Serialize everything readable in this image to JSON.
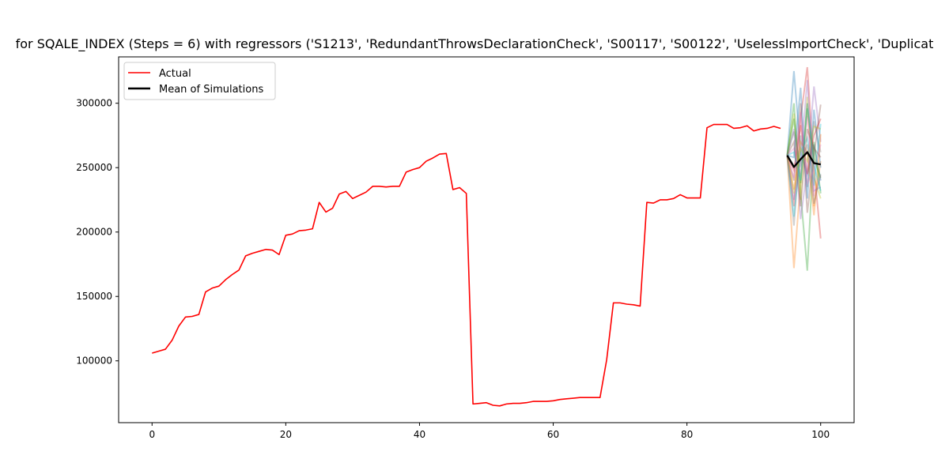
{
  "chart_data": {
    "type": "line",
    "title": "for SQALE_INDEX (Steps = 6) with regressors ('S1213', 'RedundantThrowsDeclarationCheck', 'S00117', 'S00122', 'UselessImportCheck', 'Duplicat",
    "xlabel": "",
    "ylabel": "",
    "xlim": [
      -5,
      105
    ],
    "ylim": [
      52000,
      336000
    ],
    "xticks": [
      0,
      20,
      40,
      60,
      80,
      100
    ],
    "yticks": [
      100000,
      150000,
      200000,
      250000,
      300000
    ],
    "grid": false,
    "legend_position": "upper-left",
    "series": [
      {
        "name": "Actual",
        "color": "#ff0000",
        "x": [
          0,
          1,
          2,
          3,
          4,
          5,
          6,
          7,
          8,
          9,
          10,
          11,
          12,
          13,
          14,
          15,
          16,
          17,
          18,
          19,
          20,
          21,
          22,
          23,
          24,
          25,
          26,
          27,
          28,
          29,
          30,
          31,
          32,
          33,
          34,
          35,
          36,
          37,
          38,
          39,
          40,
          41,
          42,
          43,
          44,
          45,
          46,
          47,
          48,
          49,
          50,
          51,
          52,
          53,
          54,
          55,
          56,
          57,
          58,
          59,
          60,
          61,
          62,
          63,
          64,
          65,
          66,
          67,
          68,
          69,
          70,
          71,
          72,
          73,
          74,
          75,
          76,
          77,
          78,
          79,
          80,
          81,
          82,
          83,
          84,
          85,
          86,
          87,
          88,
          89,
          90,
          91,
          92,
          93,
          94
        ],
        "y": [
          106000,
          107500,
          109000,
          116000,
          127000,
          134000,
          134500,
          136000,
          153500,
          156500,
          158000,
          163000,
          167000,
          170500,
          181500,
          183500,
          185000,
          186500,
          186000,
          182500,
          197500,
          198500,
          201000,
          201500,
          202500,
          223000,
          215500,
          218500,
          229500,
          231500,
          226000,
          228500,
          231000,
          235500,
          235500,
          235000,
          235500,
          235500,
          246500,
          248500,
          250000,
          255000,
          257500,
          260500,
          261000,
          233000,
          234500,
          230000,
          66500,
          67000,
          67500,
          65500,
          65000,
          66500,
          67000,
          67000,
          67500,
          68500,
          68500,
          68500,
          69000,
          70000,
          70500,
          71000,
          71500,
          71500,
          71500,
          71500,
          101000,
          145000,
          145000,
          144000,
          143500,
          142500,
          223000,
          222500,
          225000,
          225000,
          226000,
          229000,
          226500,
          226500,
          226500,
          281000,
          283500,
          283500,
          283500,
          280500,
          281000,
          282500,
          278500,
          280000,
          280500,
          282000,
          280500
        ]
      },
      {
        "name": "Mean of Simulations",
        "color": "#000000",
        "x": [
          95,
          96,
          97,
          98,
          99,
          100
        ],
        "y": [
          259500,
          250500,
          256500,
          262000,
          253500,
          252500
        ]
      }
    ],
    "simulations": {
      "x": [
        95,
        96,
        97,
        98,
        99,
        100
      ],
      "colors": [
        "#1f77b4",
        "#ff7f0e",
        "#2ca02c",
        "#d62728",
        "#9467bd",
        "#8c564b",
        "#e377c2",
        "#7f7f7f",
        "#bcbd22",
        "#17becf"
      ],
      "runs": [
        [
          259500,
          325000,
          262000,
          245000,
          268000,
          240000
        ],
        [
          259500,
          172000,
          240000,
          300000,
          220000,
          255000
        ],
        [
          259500,
          300000,
          230000,
          170000,
          270000,
          230000
        ],
        [
          259500,
          220000,
          288000,
          328000,
          250000,
          195000
        ],
        [
          259500,
          280000,
          210000,
          250000,
          313000,
          270000
        ],
        [
          259500,
          240000,
          300000,
          215000,
          260000,
          299000
        ],
        [
          259500,
          265000,
          245000,
          290000,
          228000,
          244000
        ],
        [
          259500,
          205000,
          275000,
          235000,
          286000,
          262000
        ],
        [
          259500,
          292000,
          225000,
          305000,
          242000,
          226000
        ],
        [
          259500,
          212000,
          262000,
          273000,
          236000,
          284000
        ],
        [
          259500,
          258000,
          312000,
          226000,
          295000,
          250000
        ],
        [
          259500,
          233000,
          270000,
          262000,
          213000,
          276000
        ],
        [
          259500,
          288000,
          238000,
          296000,
          258000,
          242000
        ],
        [
          259500,
          248000,
          283000,
          245000,
          275000,
          288000
        ],
        [
          259500,
          225000,
          256000,
          318000,
          232000,
          235000
        ],
        [
          259500,
          270000,
          220000,
          280000,
          265000,
          258000
        ],
        [
          259500,
          242000,
          293000,
          238000,
          248000,
          268000
        ],
        [
          259500,
          278000,
          252000,
          268000,
          222000,
          245000
        ],
        [
          259500,
          230000,
          265000,
          255000,
          282000,
          280000
        ],
        [
          259500,
          262000,
          240000,
          300000,
          252000,
          232000
        ]
      ]
    }
  }
}
